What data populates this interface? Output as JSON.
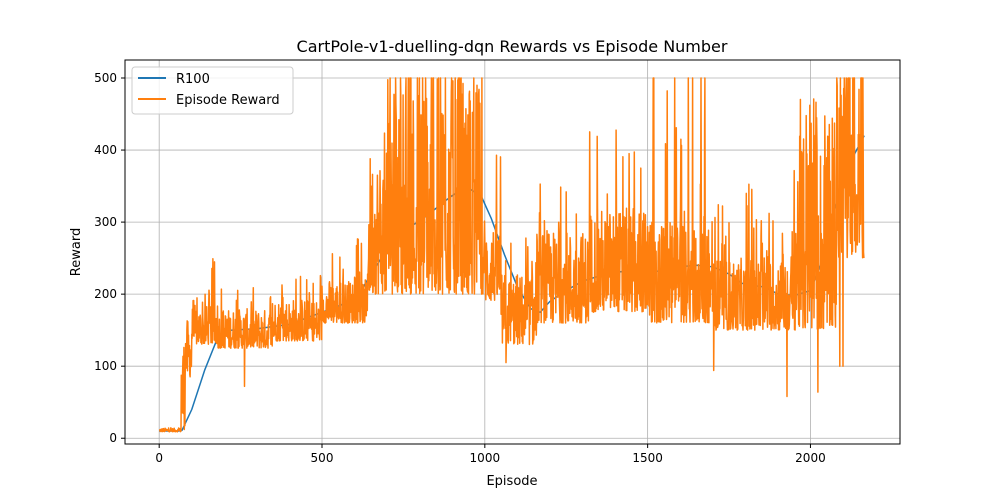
{
  "chart_data": {
    "type": "line",
    "title": "CartPole-v1-duelling-dqn Rewards vs Episode Number",
    "xlabel": "Episode",
    "ylabel": "Reward",
    "xlim": [
      -105,
      2275
    ],
    "ylim": [
      -8,
      525
    ],
    "xticks": [
      0,
      500,
      1000,
      1500,
      2000
    ],
    "yticks": [
      0,
      100,
      200,
      300,
      400,
      500
    ],
    "grid": true,
    "legend_position": "top-left",
    "series": [
      {
        "name": "R100",
        "color": "#1f77b4",
        "x": [
          0,
          20,
          40,
          60,
          70,
          100,
          140,
          180,
          220,
          300,
          400,
          500,
          560,
          620,
          660,
          700,
          760,
          820,
          880,
          940,
          990,
          1020,
          1060,
          1100,
          1140,
          1170,
          1200,
          1250,
          1300,
          1350,
          1400,
          1450,
          1500,
          1550,
          1600,
          1650,
          1700,
          1750,
          1790,
          1820,
          1860,
          1900,
          1950,
          2000,
          2030,
          2060,
          2100,
          2130,
          2165
        ],
        "y": [
          10,
          10,
          10,
          10,
          11,
          40,
          95,
          140,
          150,
          152,
          158,
          175,
          185,
          205,
          235,
          262,
          290,
          308,
          330,
          350,
          335,
          305,
          255,
          210,
          180,
          175,
          190,
          205,
          218,
          225,
          230,
          233,
          230,
          233,
          238,
          240,
          238,
          228,
          215,
          212,
          210,
          200,
          198,
          205,
          240,
          300,
          350,
          390,
          420
        ]
      },
      {
        "name": "Episode Reward",
        "color": "#ff7f0e",
        "segments": [
          {
            "x0": 0,
            "x1": 68,
            "lo": 9,
            "hi": 14,
            "max": 15
          },
          {
            "x0": 68,
            "x1": 80,
            "lo": 12,
            "hi": 150,
            "max": 192
          },
          {
            "x0": 80,
            "x1": 100,
            "lo": 85,
            "hi": 165,
            "max": 180
          },
          {
            "x0": 100,
            "x1": 150,
            "lo": 130,
            "hi": 185,
            "max": 200
          },
          {
            "x0": 150,
            "x1": 180,
            "lo": 130,
            "hi": 200,
            "max": 253
          },
          {
            "x0": 180,
            "x1": 350,
            "lo": 125,
            "hi": 180,
            "max": 210
          },
          {
            "x0": 350,
            "x1": 500,
            "lo": 135,
            "hi": 195,
            "max": 228
          },
          {
            "x0": 500,
            "x1": 640,
            "lo": 160,
            "hi": 220,
            "max": 280
          },
          {
            "x0": 640,
            "x1": 700,
            "lo": 200,
            "hi": 400,
            "max": 475
          },
          {
            "x0": 700,
            "x1": 1000,
            "lo": 200,
            "hi": 500,
            "max": 500
          },
          {
            "x0": 1000,
            "x1": 1050,
            "lo": 190,
            "hi": 300,
            "max": 405
          },
          {
            "x0": 1050,
            "x1": 1160,
            "lo": 130,
            "hi": 230,
            "max": 280
          },
          {
            "x0": 1160,
            "x1": 1320,
            "lo": 160,
            "hi": 290,
            "max": 390
          },
          {
            "x0": 1320,
            "x1": 1500,
            "lo": 175,
            "hi": 320,
            "max": 435
          },
          {
            "x0": 1500,
            "x1": 1700,
            "lo": 160,
            "hi": 300,
            "max": 500
          },
          {
            "x0": 1700,
            "x1": 1850,
            "lo": 150,
            "hi": 250,
            "max": 355
          },
          {
            "x0": 1850,
            "x1": 1950,
            "lo": 150,
            "hi": 260,
            "max": 330
          },
          {
            "x0": 1950,
            "x1": 2080,
            "lo": 150,
            "hi": 420,
            "max": 480
          },
          {
            "x0": 2080,
            "x1": 2165,
            "lo": 250,
            "hi": 500,
            "max": 500
          }
        ],
        "spikes": [
          {
            "x": 262,
            "y": 72
          },
          {
            "x": 1065,
            "y": 105
          },
          {
            "x": 1703,
            "y": 94
          },
          {
            "x": 1928,
            "y": 58
          },
          {
            "x": 2023,
            "y": 64
          },
          {
            "x": 2090,
            "y": 100
          },
          {
            "x": 2100,
            "y": 100
          },
          {
            "x": 2150,
            "y": 272
          }
        ]
      }
    ]
  }
}
